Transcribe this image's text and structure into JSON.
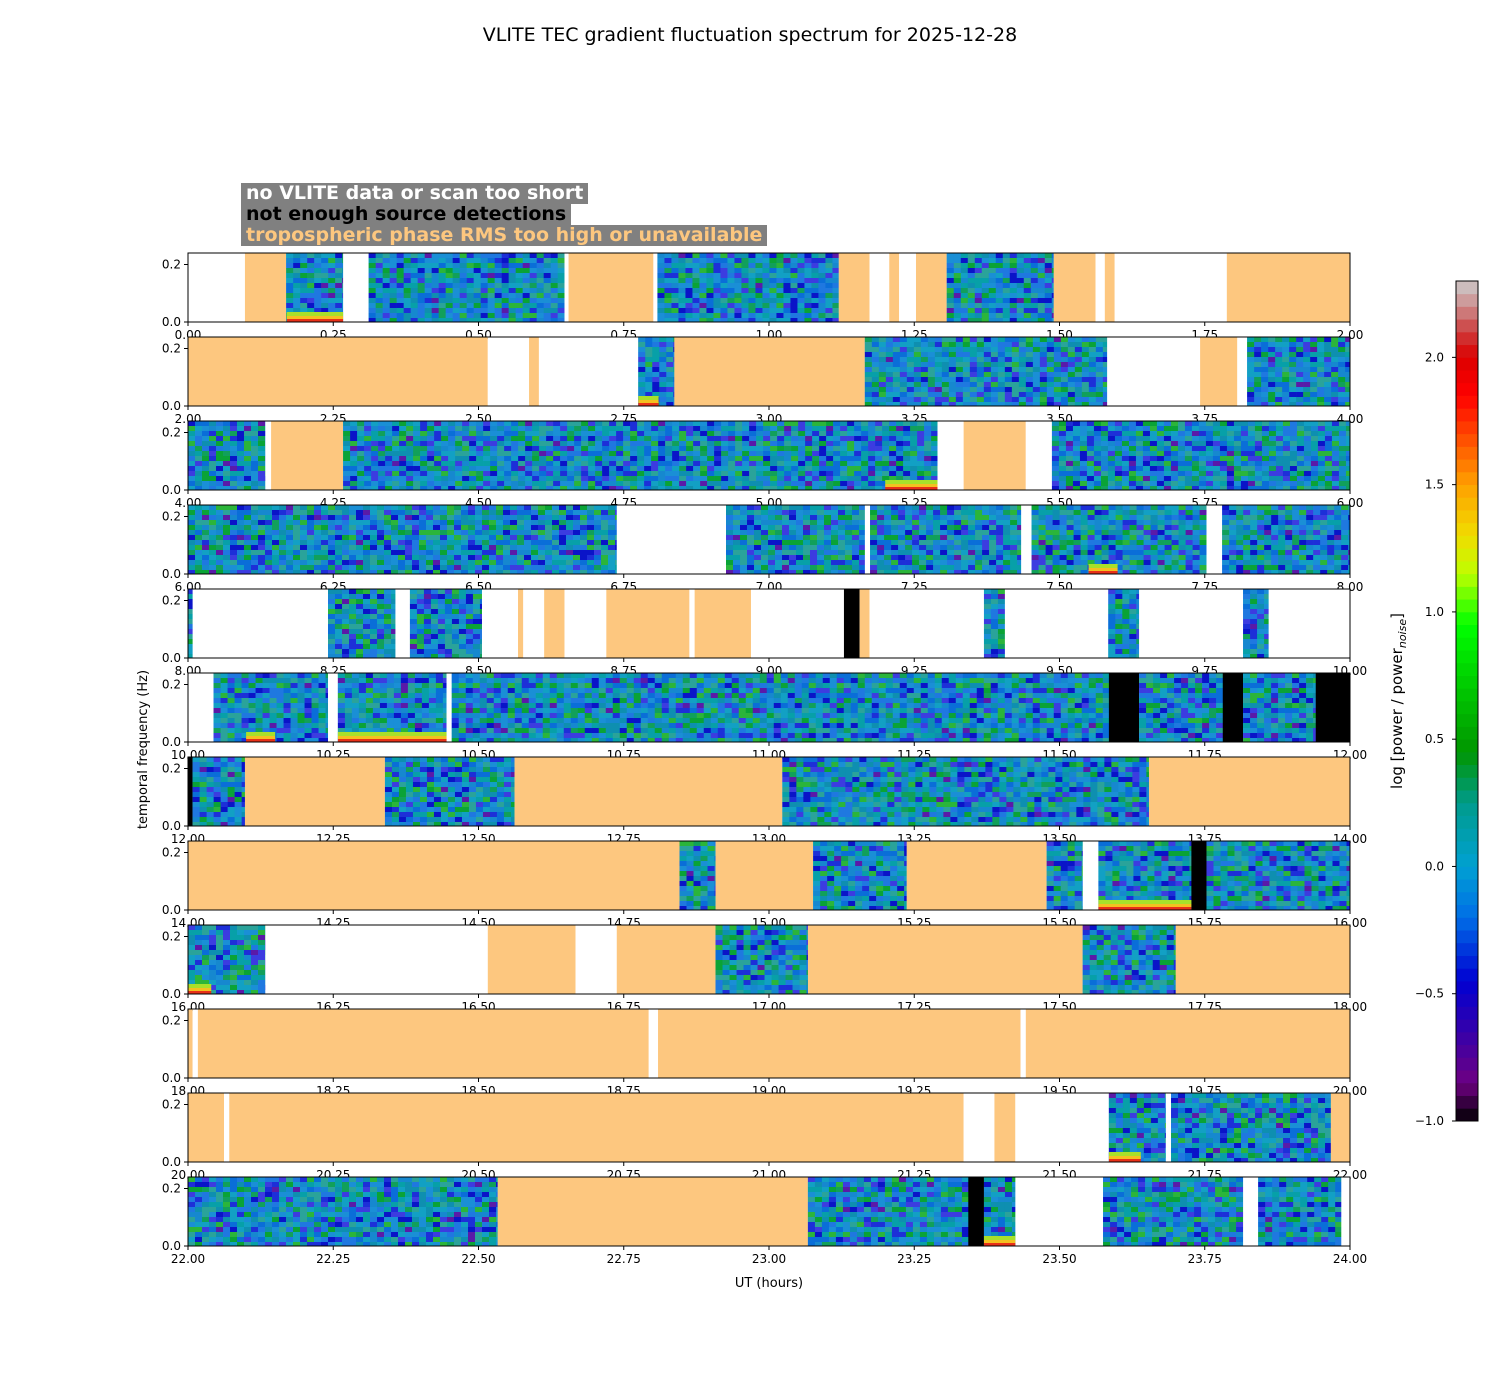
{
  "chart_data": {
    "type": "heatmap",
    "title": "VLITE TEC gradient fluctuation spectrum for 2025-12-28",
    "xlabel": "UT (hours)",
    "ylabel": "temporal frequency (Hz)",
    "colorbar_label": "log [power / power",
    "colorbar_label_sub": "noise",
    "colorbar_label_end": "]",
    "colorbar_range": [
      -1.0,
      2.3
    ],
    "colorbar_ticks": [
      "−1.0",
      "−0.5",
      "0.0",
      "0.5",
      "1.0",
      "1.5",
      "2.0"
    ],
    "colorbar_tick_values": [
      -1.0,
      -0.5,
      0.0,
      0.5,
      1.0,
      1.5,
      2.0
    ],
    "y_ticks": [
      "0.0",
      "0.2"
    ],
    "y_tick_values": [
      0.0,
      0.2
    ],
    "ylim": [
      0,
      0.24
    ],
    "legend": [
      {
        "label": "no VLITE data or scan too short",
        "color": "#ffffff"
      },
      {
        "label": "not enough source detections",
        "color": "#000000"
      },
      {
        "label": "tropospheric phase RMS too high or unavailable",
        "color": "#fdc77f"
      }
    ],
    "panels": [
      {
        "xlim": [
          0,
          2
        ],
        "x_ticks": [
          "0.00",
          "0.25",
          "0.50",
          "0.75",
          "1.00",
          "1.25",
          "1.50",
          "1.75",
          "2.00"
        ],
        "segments": [
          [
            0,
            0.098,
            "n"
          ],
          [
            0.098,
            0.169,
            "t"
          ],
          [
            0.169,
            0.267,
            "d"
          ],
          [
            0.267,
            0.311,
            "n"
          ],
          [
            0.311,
            0.648,
            "d"
          ],
          [
            0.648,
            0.655,
            "n"
          ],
          [
            0.655,
            0.801,
            "t"
          ],
          [
            0.801,
            0.808,
            "n"
          ],
          [
            0.808,
            1.12,
            "d"
          ],
          [
            1.12,
            1.173,
            "t"
          ],
          [
            1.173,
            1.207,
            "n"
          ],
          [
            1.207,
            1.224,
            "t"
          ],
          [
            1.224,
            1.253,
            "n"
          ],
          [
            1.253,
            1.306,
            "t"
          ],
          [
            1.306,
            1.49,
            "d"
          ],
          [
            1.49,
            1.562,
            "t"
          ],
          [
            1.562,
            1.578,
            "n"
          ],
          [
            1.578,
            1.595,
            "t"
          ],
          [
            1.595,
            1.788,
            "n"
          ],
          [
            1.788,
            2.0,
            "t"
          ]
        ],
        "hot": [
          [
            0.17,
            0.267,
            "low"
          ]
        ]
      },
      {
        "xlim": [
          2,
          4
        ],
        "x_ticks": [
          "2.00",
          "2.25",
          "2.50",
          "2.75",
          "3.00",
          "3.25",
          "3.50",
          "3.75",
          "4.00"
        ],
        "segments": [
          [
            2.0,
            2.516,
            "t"
          ],
          [
            2.516,
            2.587,
            "n"
          ],
          [
            2.587,
            2.604,
            "t"
          ],
          [
            2.604,
            2.775,
            "n"
          ],
          [
            2.775,
            2.837,
            "d"
          ],
          [
            2.837,
            3.165,
            "t"
          ],
          [
            3.165,
            3.582,
            "d"
          ],
          [
            3.582,
            3.742,
            "n"
          ],
          [
            3.742,
            3.806,
            "t"
          ],
          [
            3.806,
            3.823,
            "n"
          ],
          [
            3.823,
            4.0,
            "d"
          ]
        ],
        "hot": [
          [
            2.775,
            2.81,
            "low"
          ]
        ]
      },
      {
        "xlim": [
          4,
          6
        ],
        "x_ticks": [
          "4.00",
          "4.25",
          "4.50",
          "4.75",
          "5.00",
          "5.25",
          "5.50",
          "5.75",
          "6.00"
        ],
        "segments": [
          [
            4.0,
            4.133,
            "d"
          ],
          [
            4.133,
            4.143,
            "n"
          ],
          [
            4.143,
            4.267,
            "t"
          ],
          [
            4.267,
            5.29,
            "d"
          ],
          [
            5.29,
            5.335,
            "n"
          ],
          [
            5.335,
            5.442,
            "t"
          ],
          [
            5.442,
            5.487,
            "n"
          ],
          [
            5.487,
            6.0,
            "d"
          ]
        ],
        "hot": [
          [
            5.2,
            5.29,
            "low"
          ]
        ]
      },
      {
        "xlim": [
          6,
          8
        ],
        "x_ticks": [
          "6.00",
          "6.25",
          "6.50",
          "6.75",
          "7.00",
          "7.25",
          "7.50",
          "7.75",
          "8.00"
        ],
        "segments": [
          [
            6.0,
            6.738,
            "d"
          ],
          [
            6.738,
            6.926,
            "n"
          ],
          [
            6.926,
            7.165,
            "d"
          ],
          [
            7.165,
            7.174,
            "n"
          ],
          [
            7.174,
            7.434,
            "d"
          ],
          [
            7.434,
            7.452,
            "n"
          ],
          [
            7.452,
            7.753,
            "d"
          ],
          [
            7.753,
            7.78,
            "n"
          ],
          [
            7.78,
            8.0,
            "d"
          ]
        ],
        "hot": [
          [
            7.55,
            7.6,
            "low"
          ]
        ]
      },
      {
        "xlim": [
          8,
          10
        ],
        "x_ticks": [
          "8.00",
          "8.25",
          "8.50",
          "8.75",
          "9.00",
          "9.25",
          "9.50",
          "9.75",
          "10.00"
        ],
        "segments": [
          [
            8.0,
            8.008,
            "d"
          ],
          [
            8.008,
            8.241,
            "n"
          ],
          [
            8.241,
            8.357,
            "d"
          ],
          [
            8.357,
            8.382,
            "n"
          ],
          [
            8.382,
            8.506,
            "d"
          ],
          [
            8.506,
            8.568,
            "n"
          ],
          [
            8.568,
            8.577,
            "t"
          ],
          [
            8.577,
            8.613,
            "n"
          ],
          [
            8.613,
            8.648,
            "t"
          ],
          [
            8.648,
            8.72,
            "n"
          ],
          [
            8.72,
            8.863,
            "t"
          ],
          [
            8.863,
            8.872,
            "n"
          ],
          [
            8.872,
            8.969,
            "t"
          ],
          [
            8.969,
            9.129,
            "n"
          ],
          [
            9.129,
            9.156,
            "x"
          ],
          [
            9.156,
            9.173,
            "t"
          ],
          [
            9.173,
            9.37,
            "n"
          ],
          [
            9.37,
            9.406,
            "d"
          ],
          [
            9.406,
            9.584,
            "n"
          ],
          [
            9.584,
            9.637,
            "d"
          ],
          [
            9.637,
            9.816,
            "n"
          ],
          [
            9.816,
            9.86,
            "d"
          ],
          [
            9.86,
            10.0,
            "n"
          ]
        ],
        "hot": []
      },
      {
        "xlim": [
          10,
          12
        ],
        "x_ticks": [
          "10.00",
          "10.25",
          "10.50",
          "10.75",
          "11.00",
          "11.25",
          "11.50",
          "11.75",
          "12.00"
        ],
        "segments": [
          [
            10.0,
            10.044,
            "n"
          ],
          [
            10.044,
            10.241,
            "d"
          ],
          [
            10.241,
            10.258,
            "n"
          ],
          [
            10.258,
            10.445,
            "d"
          ],
          [
            10.445,
            10.454,
            "n"
          ],
          [
            10.454,
            11.585,
            "d"
          ],
          [
            11.585,
            11.637,
            "x"
          ],
          [
            11.637,
            11.781,
            "d"
          ],
          [
            11.781,
            11.816,
            "x"
          ],
          [
            11.816,
            11.941,
            "d"
          ],
          [
            11.941,
            12.0,
            "x"
          ]
        ],
        "hot": [
          [
            10.1,
            10.15,
            "low"
          ],
          [
            10.258,
            10.445,
            "low"
          ]
        ]
      },
      {
        "xlim": [
          12,
          14
        ],
        "x_ticks": [
          "12.00",
          "12.25",
          "12.50",
          "12.75",
          "13.00",
          "13.25",
          "13.50",
          "13.75",
          "14.00"
        ],
        "segments": [
          [
            12.0,
            12.008,
            "x"
          ],
          [
            12.008,
            12.098,
            "d"
          ],
          [
            12.098,
            12.339,
            "t"
          ],
          [
            12.339,
            12.562,
            "d"
          ],
          [
            12.562,
            13.023,
            "t"
          ],
          [
            13.023,
            13.654,
            "d"
          ],
          [
            13.654,
            14.0,
            "t"
          ]
        ],
        "hot": []
      },
      {
        "xlim": [
          14,
          16
        ],
        "x_ticks": [
          "14.00",
          "14.25",
          "14.50",
          "14.75",
          "15.00",
          "15.25",
          "15.50",
          "15.75",
          "16.00"
        ],
        "segments": [
          [
            14.0,
            14.846,
            "t"
          ],
          [
            14.846,
            14.908,
            "d"
          ],
          [
            14.908,
            15.076,
            "t"
          ],
          [
            15.076,
            15.237,
            "d"
          ],
          [
            15.237,
            15.478,
            "t"
          ],
          [
            15.478,
            15.54,
            "d"
          ],
          [
            15.54,
            15.567,
            "n"
          ],
          [
            15.567,
            15.727,
            "d"
          ],
          [
            15.727,
            15.753,
            "x"
          ],
          [
            15.753,
            16.0,
            "d"
          ]
        ],
        "hot": [
          [
            15.567,
            15.727,
            "low"
          ]
        ]
      },
      {
        "xlim": [
          16,
          18
        ],
        "x_ticks": [
          "16.00",
          "16.25",
          "16.50",
          "16.75",
          "17.00",
          "17.25",
          "17.50",
          "17.75",
          "18.00"
        ],
        "segments": [
          [
            16.0,
            16.133,
            "d"
          ],
          [
            16.133,
            16.516,
            "n"
          ],
          [
            16.516,
            16.667,
            "t"
          ],
          [
            16.667,
            16.738,
            "n"
          ],
          [
            16.738,
            16.908,
            "t"
          ],
          [
            16.908,
            17.067,
            "d"
          ],
          [
            17.067,
            17.54,
            "t"
          ],
          [
            17.54,
            17.7,
            "d"
          ],
          [
            17.7,
            18.0,
            "t"
          ]
        ],
        "hot": [
          [
            16.0,
            16.04,
            "low"
          ]
        ]
      },
      {
        "xlim": [
          18,
          20
        ],
        "x_ticks": [
          "18.00",
          "18.25",
          "18.50",
          "18.75",
          "19.00",
          "19.25",
          "19.50",
          "19.75",
          "20.00"
        ],
        "segments": [
          [
            18.0,
            18.008,
            "t"
          ],
          [
            18.008,
            18.017,
            "n"
          ],
          [
            18.017,
            18.793,
            "t"
          ],
          [
            18.793,
            18.809,
            "n"
          ],
          [
            18.809,
            19.433,
            "t"
          ],
          [
            19.433,
            19.442,
            "n"
          ],
          [
            19.442,
            20.0,
            "t"
          ]
        ],
        "hot": []
      },
      {
        "xlim": [
          20,
          22
        ],
        "x_ticks": [
          "20.00",
          "20.25",
          "20.50",
          "20.75",
          "21.00",
          "21.25",
          "21.50",
          "21.75",
          "22.00"
        ],
        "segments": [
          [
            20.0,
            20.062,
            "t"
          ],
          [
            20.062,
            20.071,
            "n"
          ],
          [
            20.071,
            21.335,
            "t"
          ],
          [
            21.335,
            21.388,
            "n"
          ],
          [
            21.388,
            21.424,
            "t"
          ],
          [
            21.424,
            21.585,
            "n"
          ],
          [
            21.585,
            21.683,
            "d"
          ],
          [
            21.683,
            21.692,
            "n"
          ],
          [
            21.692,
            21.967,
            "d"
          ],
          [
            21.967,
            22.0,
            "t"
          ]
        ],
        "hot": [
          [
            21.585,
            21.64,
            "low"
          ]
        ]
      },
      {
        "xlim": [
          22,
          24
        ],
        "x_ticks": [
          "22.00",
          "22.25",
          "22.50",
          "22.75",
          "23.00",
          "23.25",
          "23.50",
          "23.75",
          "24.00"
        ],
        "segments": [
          [
            22.0,
            22.533,
            "d"
          ],
          [
            22.533,
            23.067,
            "t"
          ],
          [
            23.067,
            23.343,
            "d"
          ],
          [
            23.343,
            23.37,
            "x"
          ],
          [
            23.37,
            23.424,
            "d"
          ],
          [
            23.424,
            23.575,
            "n"
          ],
          [
            23.575,
            23.816,
            "d"
          ],
          [
            23.816,
            23.842,
            "n"
          ],
          [
            23.842,
            23.985,
            "d"
          ],
          [
            23.985,
            24.0,
            "n"
          ]
        ],
        "hot": [
          [
            23.37,
            23.424,
            "low"
          ]
        ]
      }
    ]
  }
}
